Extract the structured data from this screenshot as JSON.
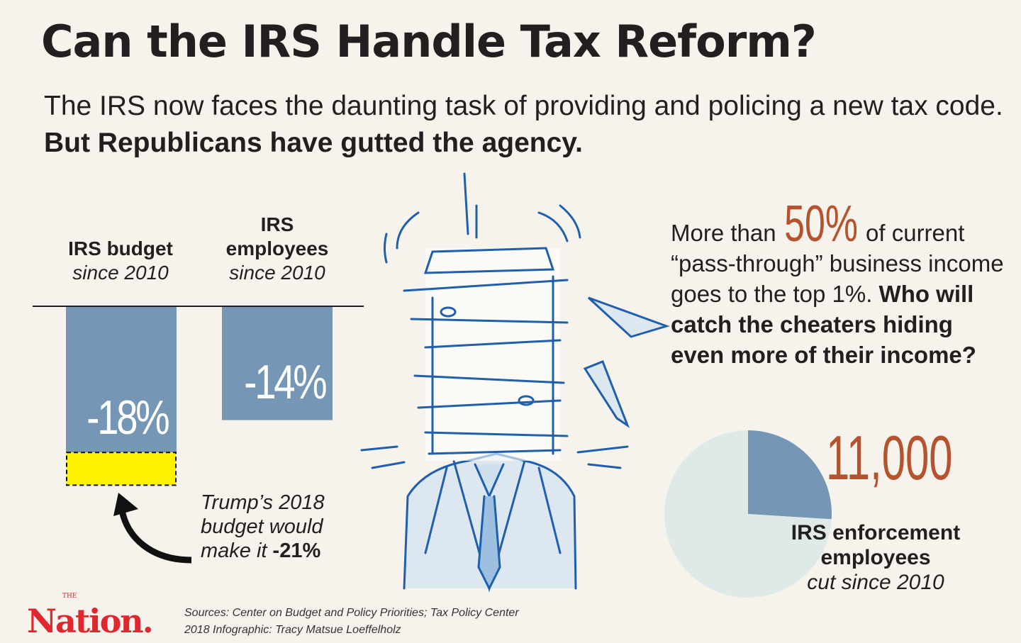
{
  "header": {
    "title": "Can the IRS Handle Tax Reform?",
    "subtitle_regular": "The IRS now faces the daunting task of providing and policing a new tax code. ",
    "subtitle_bold": "But Republicans have gutted the agency."
  },
  "colors": {
    "background": "#f6f3ec",
    "bar": "#7596b5",
    "accent": "#b5532f",
    "highlight": "#fff200",
    "pie_rest": "#dfe9e8"
  },
  "chart_data": [
    {
      "type": "bar",
      "categories": [
        "IRS budget since 2010",
        "IRS employees since 2010"
      ],
      "values": [
        -18,
        -14
      ],
      "value_labels": [
        "-18%",
        "-14%"
      ],
      "unit": "%",
      "labels": [
        {
          "title": "IRS budget",
          "sub": "since 2010"
        },
        {
          "title": "IRS employees",
          "sub": "since 2010"
        }
      ],
      "projection": {
        "category": "IRS budget since 2010",
        "value": -21
      },
      "ylim": [
        -21,
        0
      ]
    },
    {
      "type": "pie",
      "slices": [
        {
          "name": "IRS enforcement employees cut since 2010",
          "value": 26
        },
        {
          "name": "remaining",
          "value": 74
        }
      ],
      "headline": "11,000",
      "label_bold_1": "IRS enforcement",
      "label_bold_2": "employees",
      "label_italic": "cut since 2010"
    }
  ],
  "note": {
    "line1": "Trump’s 2018",
    "line2": "budget would",
    "line3": "make it ",
    "value": "-21%"
  },
  "fact": {
    "pre": "More than ",
    "big": "50%",
    "post": " of current “pass-through” business income goes to the top 1%. ",
    "bold": "Who will catch the cheaters hiding even more of their income?"
  },
  "footer": {
    "logo_the": "THE",
    "logo": "Nation.",
    "sources": "Sources: Center on Budget and Policy Priorities; Tax Policy Center",
    "credit": "2018 Infographic: Tracy Matsue Loeffelholz"
  }
}
